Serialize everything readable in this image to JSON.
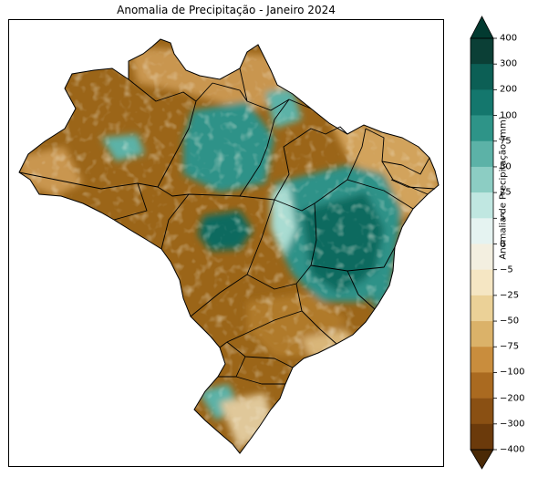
{
  "title": "Anomalia de Precipitação - Janeiro 2024",
  "colorbar": {
    "label": "Anomalia de Precipitação (mm)",
    "ticks": [
      "400",
      "300",
      "200",
      "100",
      "75",
      "50",
      "25",
      "5",
      "0",
      "−5",
      "−25",
      "−50",
      "−75",
      "−100",
      "−200",
      "−300",
      "−400"
    ],
    "colors": [
      "#0b3f36",
      "#0c5f55",
      "#14776d",
      "#2e9488",
      "#5cb2a7",
      "#8ccdc3",
      "#c0e7e1",
      "#e5f3f1",
      "#f3efe0",
      "#f5e6c3",
      "#ebd197",
      "#dbb269",
      "#c98d3d",
      "#aa6a20",
      "#8a5013",
      "#6b3a0b"
    ],
    "extend_top": "#023a30",
    "extend_bottom": "#4a2906"
  },
  "map_legend_colors": {
    "dry": "#9b6518",
    "dry_light": "#c99650",
    "neutral": "#ece3c8",
    "wet_light": "#a9dcd2",
    "wet": "#2f9288",
    "wet_dark": "#0f6b5e"
  }
}
